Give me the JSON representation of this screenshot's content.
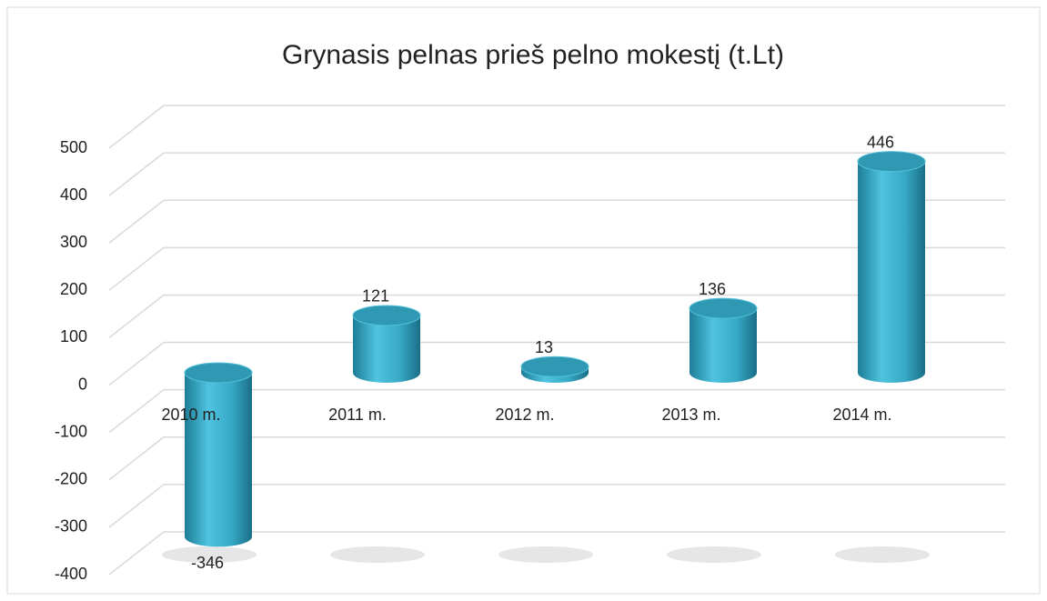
{
  "chart_data": {
    "type": "bar3d",
    "title": "Grynasis pelnas prieš pelno mokestį   (t.Lt)",
    "categories": [
      "2010 m.",
      "2011 m.",
      "2012 m.",
      "2013 m.",
      "2014 m."
    ],
    "values": [
      -346,
      121,
      13,
      136,
      446
    ],
    "color": "#3aaecb",
    "ylim": [
      -400,
      500
    ],
    "yticks": [
      -400,
      -300,
      -200,
      -100,
      0,
      100,
      200,
      300,
      400,
      500
    ],
    "grid": true
  }
}
